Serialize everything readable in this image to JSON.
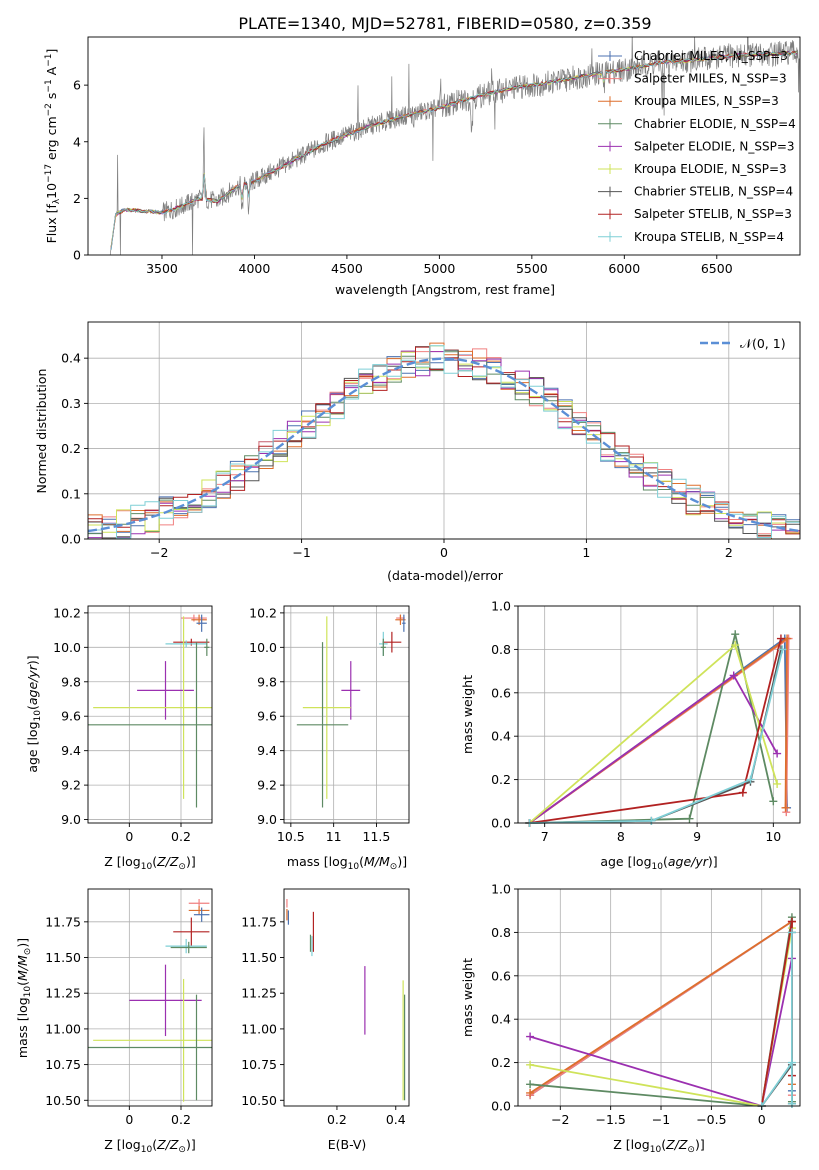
{
  "figure": {
    "title": "PLATE=1340, MJD=52781, FIBERID=0580, z=0.359"
  },
  "chart_data": [
    {
      "id": "spectrum",
      "type": "line",
      "xlabel": "wavelength [Angstrom, rest frame]",
      "ylabel": "Flux [f_λ 10^-17 erg cm^-2 s^-1 A^-1]",
      "xlim": [
        3100,
        6950
      ],
      "ylim": [
        0,
        7.7
      ],
      "xticks": [
        3500,
        4000,
        4500,
        5000,
        5500,
        6000,
        6500
      ],
      "yticks": [
        0,
        2,
        4,
        6
      ],
      "legend_position": "top-right",
      "data_color": "#7f7f7f",
      "spectrum_anchor_points": [
        [
          3220,
          0.0
        ],
        [
          3250,
          1.45
        ],
        [
          3300,
          1.6
        ],
        [
          3400,
          1.55
        ],
        [
          3500,
          1.5
        ],
        [
          3600,
          1.7
        ],
        [
          3700,
          2.0
        ],
        [
          3800,
          1.9
        ],
        [
          3900,
          2.4
        ],
        [
          4000,
          2.6
        ],
        [
          4200,
          3.3
        ],
        [
          4400,
          4.0
        ],
        [
          4600,
          4.5
        ],
        [
          4800,
          4.9
        ],
        [
          5000,
          5.2
        ],
        [
          5200,
          5.6
        ],
        [
          5400,
          5.9
        ],
        [
          5600,
          6.1
        ],
        [
          5800,
          6.35
        ],
        [
          6000,
          6.55
        ],
        [
          6200,
          6.8
        ],
        [
          6400,
          6.9
        ],
        [
          6600,
          7.05
        ],
        [
          6800,
          7.1
        ],
        [
          6940,
          7.15
        ]
      ],
      "series": [
        {
          "name": "Chabrier MILES, N_SSP=3",
          "color": "#4c72b0"
        },
        {
          "name": "Salpeter MILES, N_SSP=3",
          "color": "#f08080"
        },
        {
          "name": "Kroupa MILES, N_SSP=3",
          "color": "#dd6f2d"
        },
        {
          "name": "Chabrier ELODIE, N_SSP=4",
          "color": "#5e8a63"
        },
        {
          "name": "Salpeter ELODIE, N_SSP=3",
          "color": "#9b30b0"
        },
        {
          "name": "Kroupa ELODIE, N_SSP=3",
          "color": "#cfe35a"
        },
        {
          "name": "Chabrier STELIB, N_SSP=4",
          "color": "#555555"
        },
        {
          "name": "Salpeter STELIB, N_SSP=3",
          "color": "#b22222"
        },
        {
          "name": "Kroupa STELIB, N_SSP=4",
          "color": "#7fcfd6"
        }
      ]
    },
    {
      "id": "residuals",
      "type": "line",
      "xlabel": "(data-model)/error",
      "ylabel": "Normed distribution",
      "xlim": [
        -2.5,
        2.5
      ],
      "ylim": [
        0,
        0.48
      ],
      "xticks": [
        -2,
        -1,
        0,
        1,
        2
      ],
      "yticks": [
        0.0,
        0.1,
        0.2,
        0.3,
        0.4
      ],
      "grid": true,
      "legend_position": "top-right",
      "gaussian": {
        "name": "𝒩(0, 1)",
        "mean": 0,
        "sigma": 1,
        "color": "#5b8fd6"
      },
      "bin_width": 0.1
    },
    {
      "id": "age_vs_Z",
      "type": "scatter",
      "xlabel": "Z [log10(Z/Z⊙)]",
      "ylabel": "age  [log10(age/yr)]",
      "xlim": [
        -0.16,
        0.32
      ],
      "ylim": [
        8.98,
        10.24
      ],
      "xticks": [
        0.0,
        0.2
      ],
      "yticks": [
        9.0,
        9.2,
        9.4,
        9.6,
        9.8,
        10.0,
        10.2
      ],
      "grid": true,
      "points": [
        {
          "x": 0.25,
          "y": 10.17,
          "xerr": 0.05,
          "yerr": 0.02,
          "c": "#f08080"
        },
        {
          "x": 0.27,
          "y": 10.16,
          "xerr": 0.03,
          "yerr": 0.03,
          "c": "#dd6f2d"
        },
        {
          "x": 0.28,
          "y": 10.14,
          "xerr": 0.02,
          "yerr": 0.05,
          "c": "#4c72b0"
        },
        {
          "x": 0.24,
          "y": 10.03,
          "xerr": 0.07,
          "yerr": 0.02,
          "c": "#b22222"
        },
        {
          "x": 0.22,
          "y": 10.02,
          "xerr": 0.08,
          "yerr": 0.02,
          "c": "#7fcfd6"
        },
        {
          "x": 0.3,
          "y": 10.0,
          "xerr": 0.01,
          "yerr": 0.05,
          "c": "#5e8a63"
        },
        {
          "x": 0.14,
          "y": 9.75,
          "xerr": 0.11,
          "yerr": 0.17,
          "c": "#9b30b0"
        },
        {
          "x": 0.21,
          "y": 9.65,
          "xerr": 0.35,
          "yerr": 0.53,
          "c": "#cfe35a"
        },
        {
          "x": 0.26,
          "y": 9.55,
          "xerr": 0.43,
          "yerr": 0.48,
          "c": "#5e8a63"
        }
      ]
    },
    {
      "id": "age_vs_mass",
      "type": "scatter",
      "xlabel": "mass [log10(M/M⊙)]",
      "ylabel": "",
      "xlim": [
        10.42,
        11.88
      ],
      "ylim": [
        8.98,
        10.24
      ],
      "xticks": [
        10.5,
        11.0,
        11.5
      ],
      "yticks": [
        9.0,
        9.2,
        9.4,
        9.6,
        9.8,
        10.0,
        10.2
      ],
      "grid": true,
      "points": [
        {
          "x": 11.78,
          "y": 10.17,
          "xerr": 0.05,
          "yerr": 0.02,
          "c": "#f08080"
        },
        {
          "x": 11.78,
          "y": 10.16,
          "xerr": 0.06,
          "yerr": 0.03,
          "c": "#dd6f2d"
        },
        {
          "x": 11.82,
          "y": 10.14,
          "xerr": 0.02,
          "yerr": 0.05,
          "c": "#4c72b0"
        },
        {
          "x": 11.68,
          "y": 10.03,
          "xerr": 0.11,
          "yerr": 0.06,
          "c": "#b22222"
        },
        {
          "x": 11.58,
          "y": 10.02,
          "xerr": 0.05,
          "yerr": 0.07,
          "c": "#7fcfd6"
        },
        {
          "x": 11.58,
          "y": 10.0,
          "xerr": 0.03,
          "yerr": 0.05,
          "c": "#5e8a63"
        },
        {
          "x": 11.2,
          "y": 9.75,
          "xerr": 0.11,
          "yerr": 0.17,
          "c": "#9b30b0"
        },
        {
          "x": 10.92,
          "y": 9.65,
          "xerr": 0.28,
          "yerr": 0.53,
          "c": "#cfe35a"
        },
        {
          "x": 10.87,
          "y": 9.55,
          "xerr": 0.3,
          "yerr": 0.48,
          "c": "#5e8a63"
        }
      ]
    },
    {
      "id": "weight_vs_age",
      "type": "line",
      "xlabel": "age  [log10(age/yr)]",
      "ylabel": "mass weight",
      "xlim": [
        6.65,
        10.35
      ],
      "ylim": [
        0.0,
        1.0
      ],
      "xticks": [
        7,
        8,
        9,
        10
      ],
      "yticks": [
        0.0,
        0.2,
        0.4,
        0.6,
        0.8,
        1.0
      ],
      "grid": true,
      "series": [
        {
          "name": "Chabrier MILES",
          "c": "#4c72b0",
          "x": [
            6.8,
            10.15,
            10.18
          ],
          "y": [
            0.0,
            0.85,
            0.07
          ]
        },
        {
          "name": "Salpeter MILES",
          "c": "#f08080",
          "x": [
            6.8,
            10.2,
            10.17
          ],
          "y": [
            0.0,
            0.85,
            0.05
          ]
        },
        {
          "name": "Kroupa MILES",
          "c": "#dd6f2d",
          "x": [
            6.8,
            10.18,
            10.16
          ],
          "y": [
            0.0,
            0.85,
            0.07
          ]
        },
        {
          "name": "Chabrier ELODIE",
          "c": "#5e8a63",
          "x": [
            6.8,
            8.9,
            9.5,
            10.0
          ],
          "y": [
            0.0,
            0.02,
            0.87,
            0.1
          ]
        },
        {
          "name": "Salpeter ELODIE",
          "c": "#9b30b0",
          "x": [
            6.8,
            9.48,
            10.05
          ],
          "y": [
            0.0,
            0.68,
            0.32
          ]
        },
        {
          "name": "Kroupa ELODIE",
          "c": "#cfe35a",
          "x": [
            6.8,
            9.5,
            10.05
          ],
          "y": [
            0.0,
            0.82,
            0.18
          ]
        },
        {
          "name": "Chabrier STELIB",
          "c": "#555555",
          "x": [
            6.8,
            8.4,
            9.7,
            10.1
          ],
          "y": [
            0.0,
            0.01,
            0.19,
            0.8
          ]
        },
        {
          "name": "Salpeter STELIB",
          "c": "#b22222",
          "x": [
            6.8,
            9.6,
            10.1
          ],
          "y": [
            0.0,
            0.14,
            0.85
          ]
        },
        {
          "name": "Kroupa STELIB",
          "c": "#7fcfd6",
          "x": [
            6.8,
            8.4,
            9.7,
            10.12
          ],
          "y": [
            0.0,
            0.01,
            0.2,
            0.8
          ]
        }
      ]
    },
    {
      "id": "mass_vs_Z",
      "type": "scatter",
      "xlabel": "Z [log10(Z/Z⊙)]",
      "ylabel": "mass [log10(M/M⊙)]",
      "xlim": [
        -0.16,
        0.32
      ],
      "ylim": [
        10.46,
        11.98
      ],
      "xticks": [
        0.0,
        0.2
      ],
      "yticks": [
        10.5,
        10.75,
        11.0,
        11.25,
        11.5,
        11.75
      ],
      "grid": true,
      "points": [
        {
          "x": 0.27,
          "y": 11.88,
          "xerr": 0.04,
          "yerr": 0.03,
          "c": "#f08080"
        },
        {
          "x": 0.27,
          "y": 11.83,
          "xerr": 0.04,
          "yerr": 0.03,
          "c": "#dd6f2d"
        },
        {
          "x": 0.28,
          "y": 11.8,
          "xerr": 0.03,
          "yerr": 0.05,
          "c": "#4c72b0"
        },
        {
          "x": 0.24,
          "y": 11.68,
          "xerr": 0.07,
          "yerr": 0.1,
          "c": "#b22222"
        },
        {
          "x": 0.22,
          "y": 11.58,
          "xerr": 0.08,
          "yerr": 0.05,
          "c": "#7fcfd6"
        },
        {
          "x": 0.23,
          "y": 11.57,
          "xerr": 0.07,
          "yerr": 0.04,
          "c": "#5e8a63"
        },
        {
          "x": 0.14,
          "y": 11.2,
          "xerr": 0.14,
          "yerr": 0.25,
          "c": "#9b30b0"
        },
        {
          "x": 0.21,
          "y": 10.92,
          "xerr": 0.35,
          "yerr": 0.43,
          "c": "#cfe35a"
        },
        {
          "x": 0.26,
          "y": 10.87,
          "xerr": 0.43,
          "yerr": 0.37,
          "c": "#5e8a63"
        }
      ]
    },
    {
      "id": "mass_vs_ebv",
      "type": "scatter",
      "xlabel": "E(B-V)",
      "ylabel": "",
      "xlim": [
        0.02,
        0.445
      ],
      "ylim": [
        10.46,
        11.98
      ],
      "xticks": [
        0.2,
        0.4
      ],
      "yticks": [
        10.5,
        10.75,
        11.0,
        11.25,
        11.5,
        11.75
      ],
      "grid": false,
      "points": [
        {
          "x": 0.03,
          "y": 11.88,
          "yerr": 0.03,
          "c": "#f08080"
        },
        {
          "x": 0.03,
          "y": 11.8,
          "yerr": 0.04,
          "c": "#dd6f2d"
        },
        {
          "x": 0.035,
          "y": 11.78,
          "yerr": 0.05,
          "c": "#4c72b0"
        },
        {
          "x": 0.12,
          "y": 11.68,
          "yerr": 0.14,
          "c": "#b22222"
        },
        {
          "x": 0.115,
          "y": 11.58,
          "yerr": 0.07,
          "c": "#7fcfd6"
        },
        {
          "x": 0.11,
          "y": 11.6,
          "yerr": 0.06,
          "c": "#5e8a63"
        },
        {
          "x": 0.295,
          "y": 11.2,
          "yerr": 0.24,
          "c": "#9b30b0"
        },
        {
          "x": 0.425,
          "y": 10.92,
          "yerr": 0.42,
          "c": "#cfe35a"
        },
        {
          "x": 0.43,
          "y": 10.87,
          "yerr": 0.37,
          "c": "#5e8a63"
        }
      ]
    },
    {
      "id": "weight_vs_Z",
      "type": "line",
      "xlabel": "Z [log10(Z/Z⊙)]",
      "ylabel": "mass weight",
      "xlim": [
        -2.42,
        0.38
      ],
      "ylim": [
        0.0,
        1.0
      ],
      "xticks": [
        -2.0,
        -1.5,
        -1.0,
        -0.5,
        0.0
      ],
      "yticks": [
        0.0,
        0.2,
        0.4,
        0.6,
        0.8,
        1.0
      ],
      "grid": true,
      "series": [
        {
          "c": "#4c72b0",
          "x": [
            -2.3,
            0.3,
            0.3
          ],
          "y": [
            0.05,
            0.85,
            0.07
          ]
        },
        {
          "c": "#f08080",
          "x": [
            -2.3,
            0.3,
            0.3
          ],
          "y": [
            0.05,
            0.85,
            0.05
          ]
        },
        {
          "c": "#dd6f2d",
          "x": [
            -2.3,
            0.3,
            0.3
          ],
          "y": [
            0.06,
            0.85,
            0.1
          ]
        },
        {
          "c": "#5e8a63",
          "x": [
            -2.3,
            0.0,
            0.3,
            0.3
          ],
          "y": [
            0.1,
            0.0,
            0.87,
            0.02
          ]
        },
        {
          "c": "#9b30b0",
          "x": [
            -2.3,
            0.0,
            0.3
          ],
          "y": [
            0.32,
            0.0,
            0.68
          ]
        },
        {
          "c": "#cfe35a",
          "x": [
            -2.3,
            0.0,
            0.3
          ],
          "y": [
            0.19,
            0.0,
            0.82
          ]
        },
        {
          "c": "#555555",
          "x": [
            0.0,
            0.3,
            0.3,
            0.3
          ],
          "y": [
            0.0,
            0.19,
            0.8,
            0.01
          ]
        },
        {
          "c": "#b22222",
          "x": [
            0.0,
            0.3,
            0.3
          ],
          "y": [
            0.0,
            0.85,
            0.14
          ]
        },
        {
          "c": "#7fcfd6",
          "x": [
            0.0,
            0.3,
            0.3,
            0.3
          ],
          "y": [
            0.0,
            0.2,
            0.8,
            0.01
          ]
        }
      ]
    }
  ]
}
